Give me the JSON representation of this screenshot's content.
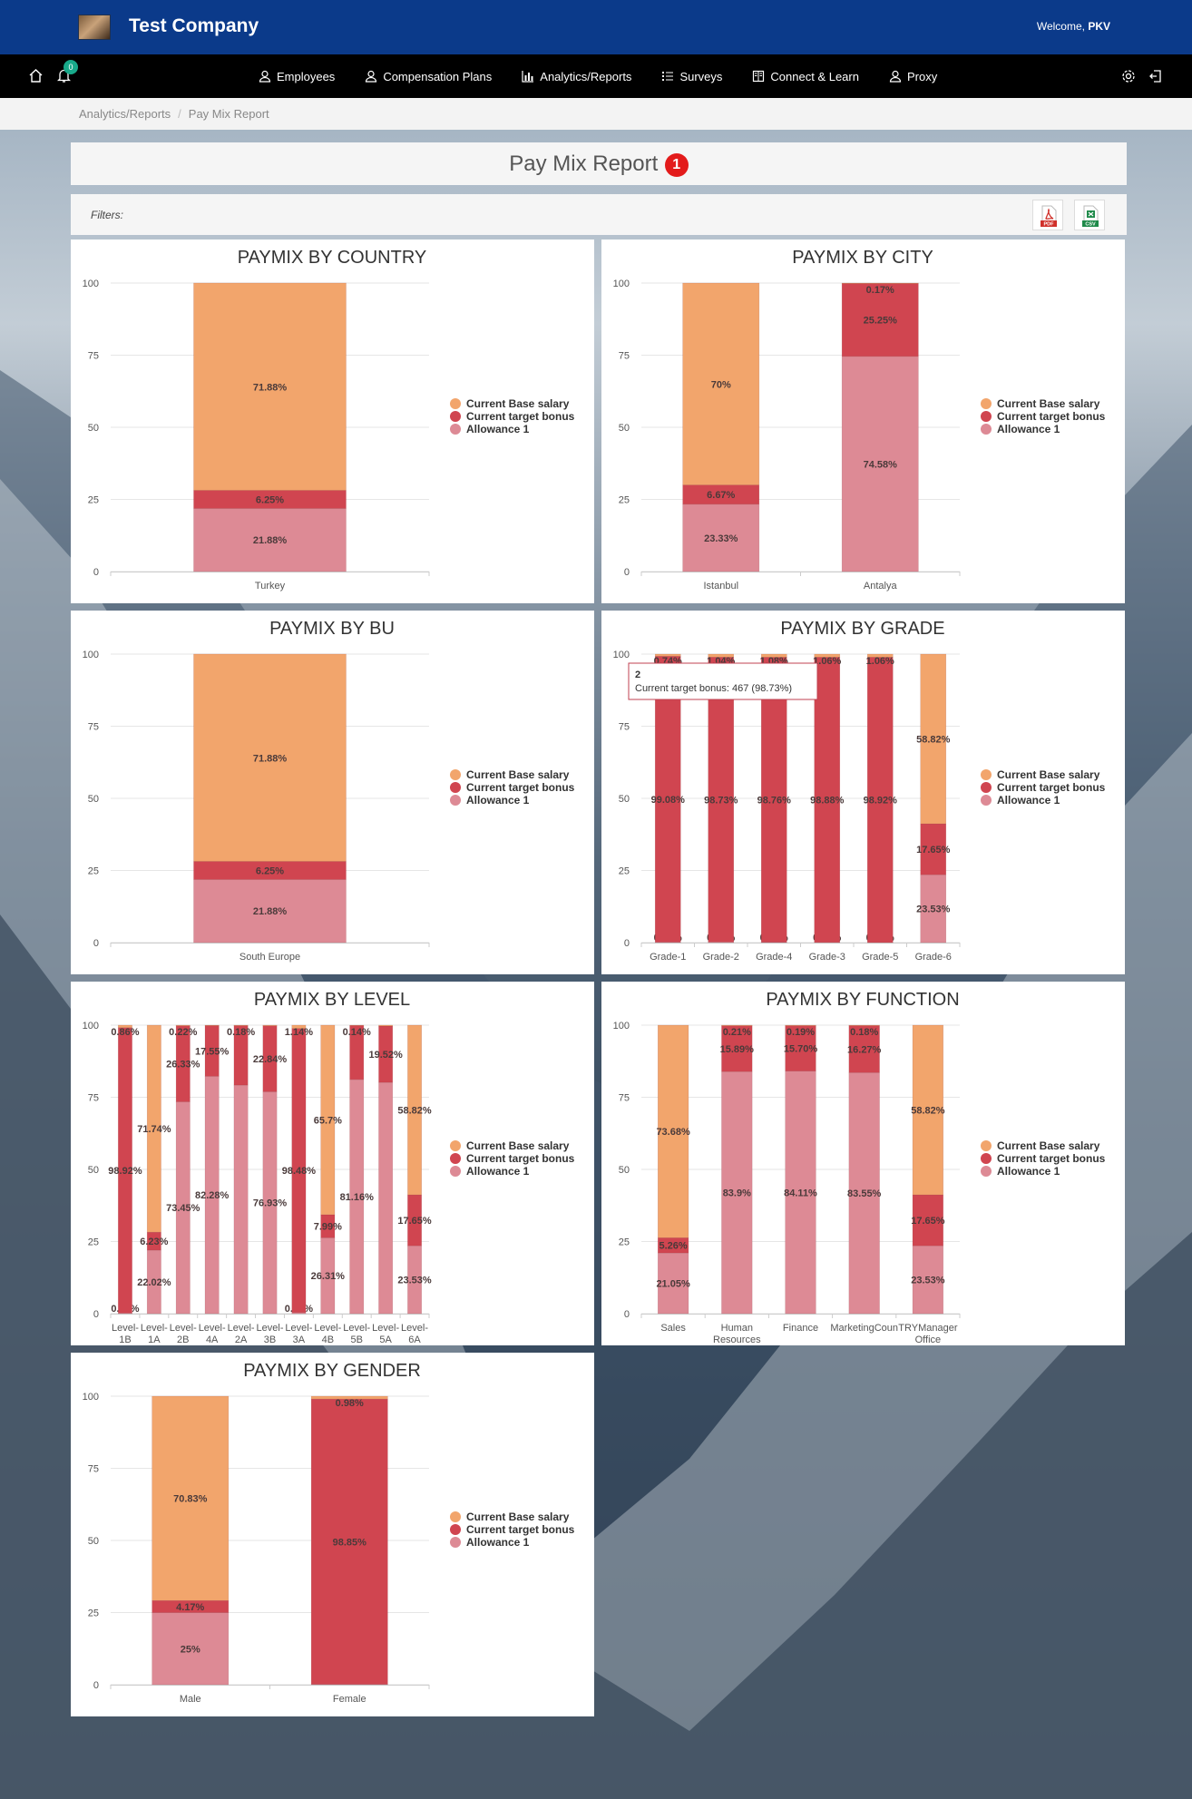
{
  "header": {
    "company": "Test Company",
    "welcome_prefix": "Welcome, ",
    "user": "PKV"
  },
  "nav": {
    "notification_count": "0",
    "items": [
      {
        "label": "Employees",
        "icon": "user-icon"
      },
      {
        "label": "Compensation Plans",
        "icon": "user-dollar-icon"
      },
      {
        "label": "Analytics/Reports",
        "icon": "bar-chart-icon"
      },
      {
        "label": "Surveys",
        "icon": "list-icon"
      },
      {
        "label": "Connect & Learn",
        "icon": "book-icon"
      },
      {
        "label": "Proxy",
        "icon": "user-icon"
      }
    ]
  },
  "breadcrumb": {
    "parent": "Analytics/Reports",
    "current": "Pay Mix Report"
  },
  "page": {
    "title": "Pay Mix Report",
    "badge": "1",
    "filters_label": "Filters:",
    "pdf_label": "PDF",
    "csv_label": "CSV"
  },
  "tooltip": {
    "title": "2",
    "text": "Current target bonus: 467 (98.73%)"
  },
  "colors": {
    "base": "#f2a56c",
    "bonus": "#d04550",
    "allowance": "#dd8a95"
  },
  "chart_data": [
    {
      "type": "bar",
      "stacked": true,
      "title": "PAYMIX BY COUNTRY",
      "categories": [
        "Turkey"
      ],
      "ylim": [
        0,
        100
      ],
      "yticks": [
        0,
        25,
        50,
        75,
        100
      ],
      "legend": "right",
      "series": [
        {
          "name": "Current Base salary",
          "values": [
            71.88
          ],
          "labels": [
            "71.88%"
          ]
        },
        {
          "name": "Current target bonus",
          "values": [
            6.25
          ],
          "labels": [
            "6.25%"
          ]
        },
        {
          "name": "Allowance 1",
          "values": [
            21.88
          ],
          "labels": [
            "21.88%"
          ]
        }
      ]
    },
    {
      "type": "bar",
      "stacked": true,
      "title": "PAYMIX BY CITY",
      "categories": [
        "Istanbul",
        "Antalya"
      ],
      "ylim": [
        0,
        100
      ],
      "yticks": [
        0,
        25,
        50,
        75,
        100
      ],
      "legend": "right",
      "series": [
        {
          "name": "Current Base salary",
          "values": [
            70,
            0.17
          ],
          "labels": [
            "70%",
            "0.17%"
          ]
        },
        {
          "name": "Current target bonus",
          "values": [
            6.67,
            25.25
          ],
          "labels": [
            "6.67%",
            "25.25%"
          ]
        },
        {
          "name": "Allowance 1",
          "values": [
            23.33,
            74.58
          ],
          "labels": [
            "23.33%",
            "74.58%"
          ]
        }
      ]
    },
    {
      "type": "bar",
      "stacked": true,
      "title": "PAYMIX BY BU",
      "categories": [
        "South Europe"
      ],
      "ylim": [
        0,
        100
      ],
      "yticks": [
        0,
        25,
        50,
        75,
        100
      ],
      "legend": "right",
      "series": [
        {
          "name": "Current Base salary",
          "values": [
            71.88
          ],
          "labels": [
            "71.88%"
          ]
        },
        {
          "name": "Current target bonus",
          "values": [
            6.25
          ],
          "labels": [
            "6.25%"
          ]
        },
        {
          "name": "Allowance 1",
          "values": [
            21.88
          ],
          "labels": [
            "21.88%"
          ]
        }
      ]
    },
    {
      "type": "bar",
      "stacked": true,
      "title": "PAYMIX BY GRADE",
      "categories": [
        "Grade-1",
        "Grade-2",
        "Grade-4",
        "Grade-3",
        "Grade-5",
        "Grade-6"
      ],
      "ylim": [
        0,
        100
      ],
      "yticks": [
        0,
        25,
        50,
        75,
        100
      ],
      "legend": "right",
      "series": [
        {
          "name": "Current Base salary",
          "values": [
            0.74,
            1.04,
            1.08,
            1.06,
            1.06,
            58.82
          ],
          "labels": [
            "0.74%",
            "1.04%",
            "1.08%",
            "1.06%",
            "1.06%",
            "58.82%"
          ]
        },
        {
          "name": "Current target bonus",
          "values": [
            99.08,
            98.73,
            98.76,
            98.88,
            98.92,
            17.65
          ],
          "labels": [
            "99.08%",
            "98.73%",
            "98.76%",
            "98.88%",
            "98.92%",
            "17.65%"
          ]
        },
        {
          "name": "Allowance 1",
          "values": [
            0.18,
            0.23,
            0.16,
            0.06,
            0.02,
            23.53
          ],
          "labels": [
            "0.18%",
            "0.23%",
            "0.16%",
            "0.06%",
            "0.02%",
            "23.53%"
          ]
        }
      ]
    },
    {
      "type": "bar",
      "stacked": true,
      "title": "PAYMIX BY LEVEL",
      "categories": [
        "Level-1B",
        "Level-1A",
        "Level-2B",
        "Level-4A",
        "Level-2A",
        "Level-3B",
        "Level-3A",
        "Level-4B",
        "Level-5B",
        "Level-5A",
        "Level-6A"
      ],
      "ylim": [
        0,
        100
      ],
      "yticks": [
        0,
        25,
        50,
        75,
        100
      ],
      "legend": "right",
      "series": [
        {
          "name": "Current Base salary",
          "values": [
            0.86,
            71.74,
            0.22,
            0.17,
            0.18,
            0.23,
            1.14,
            65.7,
            0.14,
            0.32,
            58.82
          ],
          "labels": [
            "0.86%",
            "71.74%",
            "0.22%",
            "",
            "0.18%",
            "",
            "1.14%",
            "65.7%",
            "0.14%",
            "",
            "58.82%"
          ]
        },
        {
          "name": "Current target bonus",
          "values": [
            98.92,
            6.23,
            26.33,
            17.55,
            20.6,
            22.84,
            98.48,
            7.99,
            18.7,
            19.52,
            17.65
          ],
          "labels": [
            "98.92%",
            "6.23%",
            "26.33%",
            "17.55%",
            "",
            "22.84%",
            "98.48%",
            "7.99%",
            "",
            "19.52%",
            "17.65%"
          ]
        },
        {
          "name": "Allowance 1",
          "values": [
            0.22,
            22.02,
            73.45,
            82.28,
            79.22,
            76.93,
            0.38,
            26.31,
            81.16,
            80.16,
            23.53
          ],
          "labels": [
            "0.22%",
            "22.02%",
            "73.45%",
            "82.28%",
            "",
            "76.93%",
            "0.38%",
            "26.31%",
            "81.16%",
            "",
            "23.53%"
          ]
        }
      ]
    },
    {
      "type": "bar",
      "stacked": true,
      "title": "PAYMIX BY FUNCTION",
      "categories": [
        "Sales",
        "Human Resources",
        "Finance",
        "MarketingCoun",
        "TRYManager Office"
      ],
      "ylim": [
        0,
        100
      ],
      "yticks": [
        0,
        25,
        50,
        75,
        100
      ],
      "legend": "right",
      "series": [
        {
          "name": "Current Base salary",
          "values": [
            73.68,
            0.21,
            0.19,
            0.18,
            58.82
          ],
          "labels": [
            "73.68%",
            "0.21%",
            "0.19%",
            "0.18%",
            "58.82%"
          ]
        },
        {
          "name": "Current target bonus",
          "values": [
            5.26,
            15.89,
            15.7,
            16.27,
            17.65
          ],
          "labels": [
            "5.26%",
            "15.89%",
            "15.70%",
            "16.27%",
            "17.65%"
          ]
        },
        {
          "name": "Allowance 1",
          "values": [
            21.05,
            83.9,
            84.11,
            83.55,
            23.53
          ],
          "labels": [
            "21.05%",
            "83.9%",
            "84.11%",
            "83.55%",
            "23.53%"
          ]
        }
      ]
    },
    {
      "type": "bar",
      "stacked": true,
      "title": "PAYMIX BY GENDER",
      "categories": [
        "Male",
        "Female"
      ],
      "ylim": [
        0,
        100
      ],
      "yticks": [
        0,
        25,
        50,
        75,
        100
      ],
      "legend": "right",
      "series": [
        {
          "name": "Current Base salary",
          "values": [
            70.83,
            0.98
          ],
          "labels": [
            "70.83%",
            "0.98%"
          ]
        },
        {
          "name": "Current target bonus",
          "values": [
            4.17,
            98.85
          ],
          "labels": [
            "4.17%",
            "98.85%"
          ]
        },
        {
          "name": "Allowance 1",
          "values": [
            25,
            0.17
          ],
          "labels": [
            "25%",
            "0.17%"
          ]
        }
      ]
    }
  ]
}
